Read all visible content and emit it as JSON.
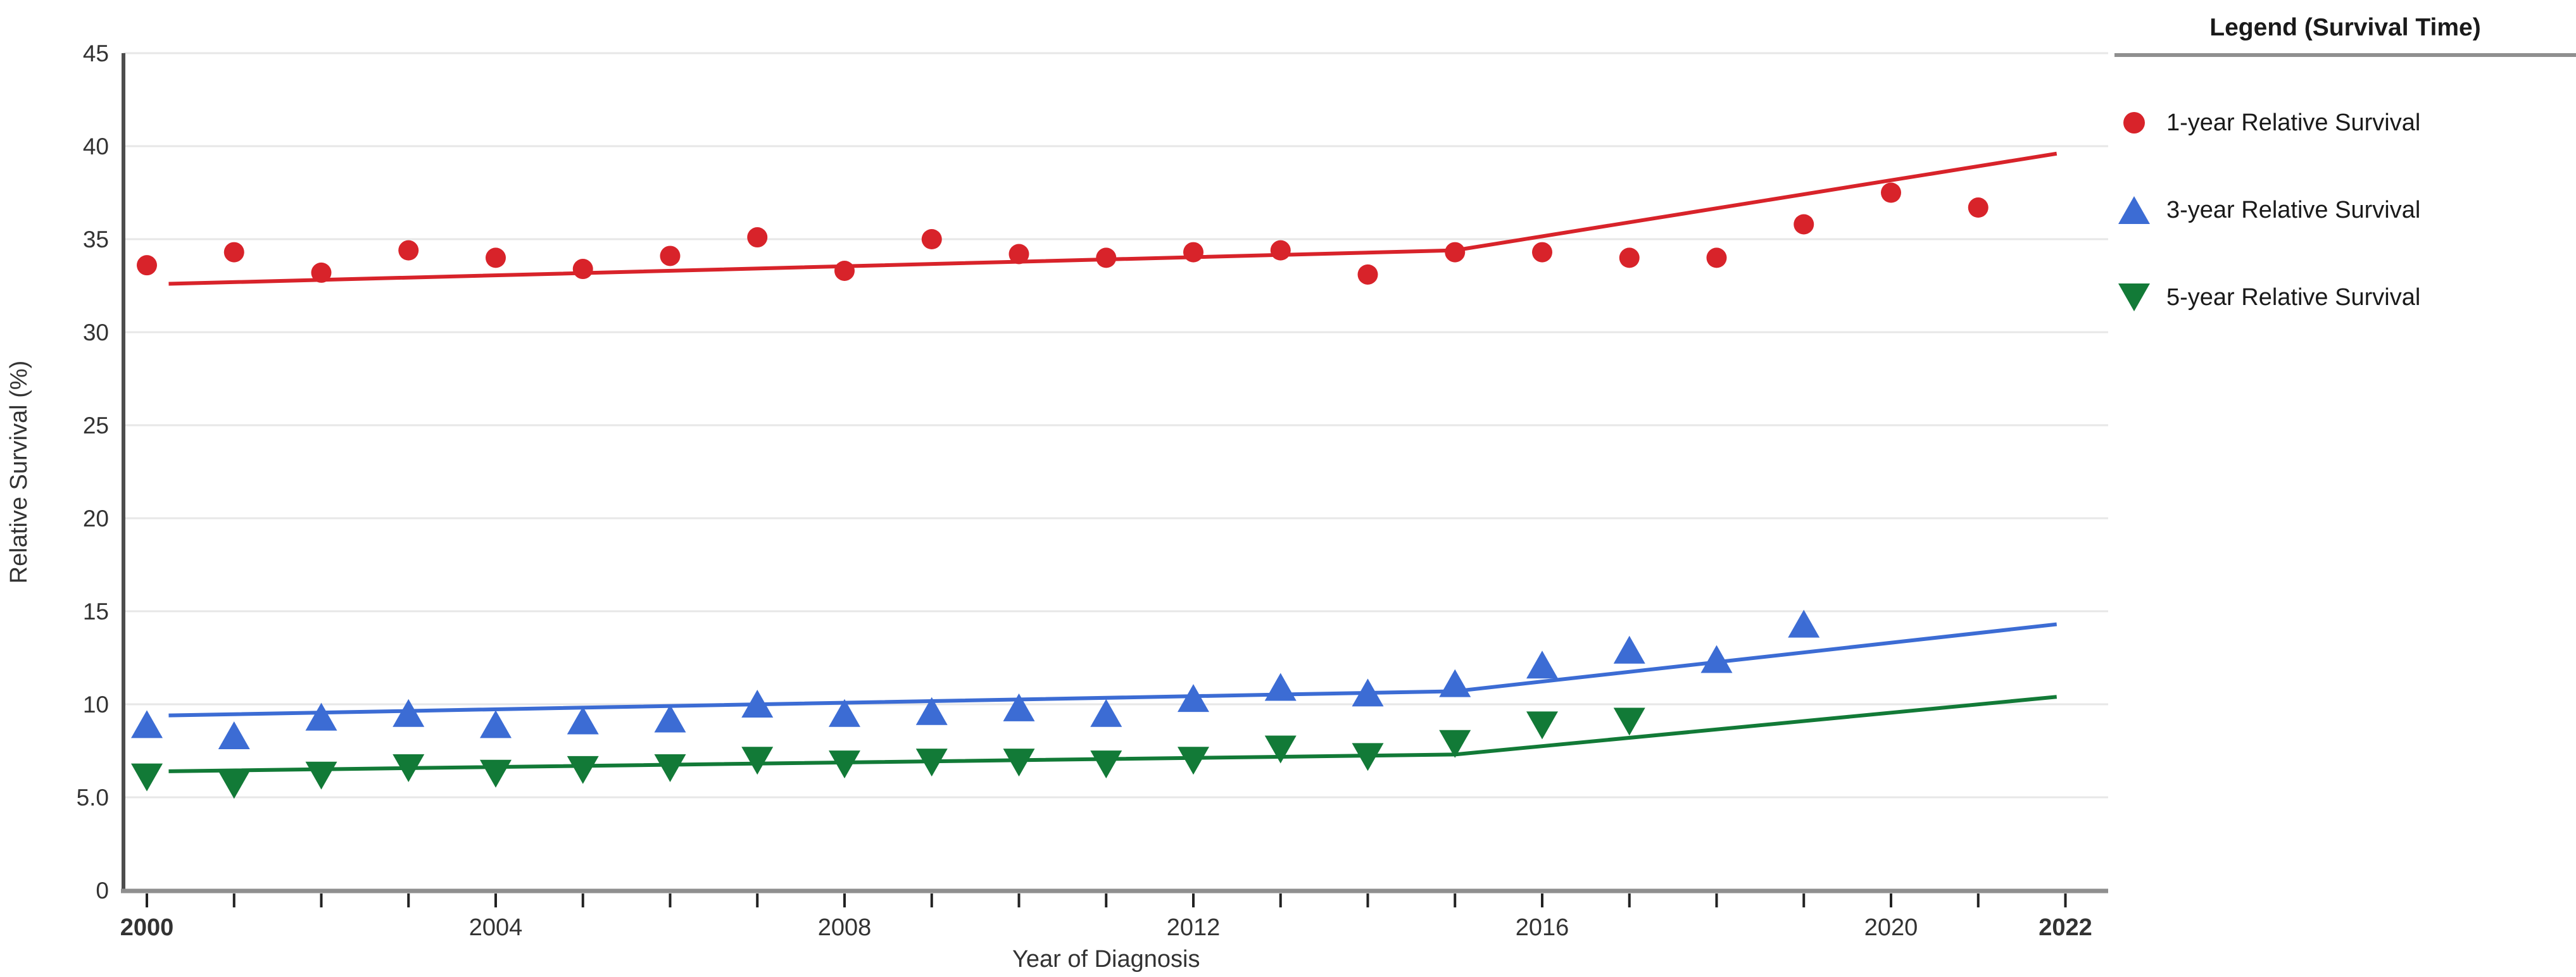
{
  "page": {
    "background": "#ffffff"
  },
  "legend": {
    "title": "Legend (Survival Time)",
    "items": [
      {
        "label": "1-year Relative Survival",
        "marker": "circle",
        "color": "#d8232a"
      },
      {
        "label": "3-year Relative Survival",
        "marker": "triangle-up",
        "color": "#3c6cd4"
      },
      {
        "label": "5-year Relative Survival",
        "marker": "triangle-down",
        "color": "#127a37"
      }
    ]
  },
  "chart_data": {
    "type": "scatter",
    "title": "",
    "xlabel": "Year of Diagnosis",
    "ylabel": "Relative Survival (%)",
    "xlim": [
      1999.7,
      2022.5
    ],
    "ylim": [
      0,
      45
    ],
    "grid": true,
    "legend_position": "right",
    "y_ticks": [
      0,
      5,
      10,
      15,
      20,
      25,
      30,
      35,
      40,
      45
    ],
    "y_tick_labels": [
      "0",
      "5.0",
      "10",
      "15",
      "20",
      "25",
      "30",
      "35",
      "40",
      "45"
    ],
    "x_minor_tick_years": [
      2000,
      2001,
      2002,
      2003,
      2004,
      2005,
      2006,
      2007,
      2008,
      2009,
      2010,
      2011,
      2012,
      2013,
      2014,
      2015,
      2016,
      2017,
      2018,
      2019,
      2020,
      2021,
      2022
    ],
    "x_labeled_ticks": [
      {
        "year": 2000,
        "label": "2000",
        "bold": true
      },
      {
        "year": 2004,
        "label": "2004",
        "bold": false
      },
      {
        "year": 2008,
        "label": "2008",
        "bold": false
      },
      {
        "year": 2012,
        "label": "2012",
        "bold": false
      },
      {
        "year": 2016,
        "label": "2016",
        "bold": false
      },
      {
        "year": 2020,
        "label": "2020",
        "bold": false
      },
      {
        "year": 2022,
        "label": "2022",
        "bold": true
      }
    ],
    "series": [
      {
        "name": "1-year Relative Survival",
        "marker": "circle",
        "color": "#d8232a",
        "x": [
          2000,
          2001,
          2002,
          2003,
          2004,
          2005,
          2006,
          2007,
          2008,
          2009,
          2010,
          2011,
          2012,
          2013,
          2014,
          2015,
          2016,
          2017,
          2018,
          2019,
          2020,
          2021
        ],
        "y": [
          33.6,
          34.3,
          33.2,
          34.4,
          34.0,
          33.4,
          34.1,
          35.1,
          33.3,
          35.0,
          34.2,
          34.0,
          34.3,
          34.4,
          33.1,
          34.3,
          34.3,
          34.0,
          34.0,
          35.8,
          37.5,
          36.7
        ]
      },
      {
        "name": "3-year Relative Survival",
        "marker": "triangle-up",
        "color": "#3c6cd4",
        "x": [
          2000,
          2001,
          2002,
          2003,
          2004,
          2005,
          2006,
          2007,
          2008,
          2009,
          2010,
          2011,
          2012,
          2013,
          2014,
          2015,
          2016,
          2017,
          2018,
          2019
        ],
        "y": [
          8.9,
          8.3,
          9.3,
          9.5,
          8.9,
          9.1,
          9.2,
          10.0,
          9.5,
          9.6,
          9.8,
          9.5,
          10.3,
          10.9,
          10.6,
          11.1,
          12.1,
          12.9,
          12.4,
          14.3
        ]
      },
      {
        "name": "5-year Relative Survival",
        "marker": "triangle-down",
        "color": "#127a37",
        "x": [
          2000,
          2001,
          2002,
          2003,
          2004,
          2005,
          2006,
          2007,
          2008,
          2009,
          2010,
          2011,
          2012,
          2013,
          2014,
          2015,
          2016,
          2017
        ],
        "y": [
          6.1,
          5.7,
          6.2,
          6.6,
          6.3,
          6.5,
          6.6,
          7.0,
          6.8,
          6.9,
          6.9,
          6.8,
          7.0,
          7.6,
          7.2,
          7.9,
          8.9,
          9.1
        ]
      }
    ],
    "trend_lines": [
      {
        "series": "1-year Relative Survival",
        "color": "#d8232a",
        "points": [
          [
            2000.25,
            32.6
          ],
          [
            2015,
            34.4
          ],
          [
            2021.9,
            39.6
          ]
        ]
      },
      {
        "series": "3-year Relative Survival",
        "color": "#3c6cd4",
        "points": [
          [
            2000.25,
            9.4
          ],
          [
            2015,
            10.7
          ],
          [
            2021.9,
            14.3
          ]
        ]
      },
      {
        "series": "5-year Relative Survival",
        "color": "#127a37",
        "points": [
          [
            2000.25,
            6.4
          ],
          [
            2015,
            7.3
          ],
          [
            2021.9,
            10.4
          ]
        ]
      }
    ],
    "colors": {
      "gridline": "#e7e7e7",
      "x_axis_line": "#8f8f8f",
      "y_axis_line": "#4d4d4d",
      "tick_mark": "#222222",
      "tick_label": "#333333",
      "axis_title": "#333333"
    }
  }
}
